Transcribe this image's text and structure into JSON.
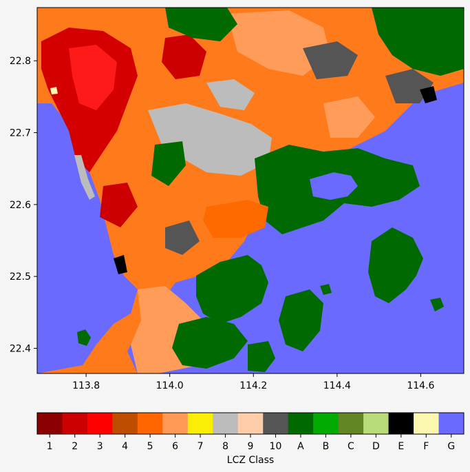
{
  "map": {
    "x_ticks": [
      "113.8",
      "114.0",
      "114.2",
      "114.4",
      "114.6"
    ],
    "y_ticks": [
      "22.8",
      "22.7",
      "22.6",
      "22.5",
      "22.4"
    ],
    "x_tick_values": [
      113.8,
      114.0,
      114.2,
      114.4,
      114.6
    ],
    "y_tick_values": [
      22.8,
      22.7,
      22.6,
      22.5,
      22.4
    ],
    "lon_range": [
      113.683,
      114.703
    ],
    "lat_range": [
      22.365,
      22.874
    ],
    "water_color": "#6a6aff",
    "dominant_land_colors": {
      "urban_west": "#ff6a00",
      "dense_urban_core": "#d40000",
      "vegetation": "#006a00",
      "light_industry": "#bcbcbc",
      "open_low_rise": "#ff9c5a"
    }
  },
  "colorbar": {
    "label": "LCZ Class",
    "classes": [
      {
        "label": "1",
        "color": "#8b0000"
      },
      {
        "label": "2",
        "color": "#cc0000"
      },
      {
        "label": "3",
        "color": "#ff0000"
      },
      {
        "label": "4",
        "color": "#bf4d00"
      },
      {
        "label": "5",
        "color": "#ff6600"
      },
      {
        "label": "6",
        "color": "#ff9955"
      },
      {
        "label": "7",
        "color": "#faee05"
      },
      {
        "label": "8",
        "color": "#bcbcbc"
      },
      {
        "label": "9",
        "color": "#ffccaa"
      },
      {
        "label": "10",
        "color": "#555555"
      },
      {
        "label": "A",
        "color": "#006a00"
      },
      {
        "label": "B",
        "color": "#00aa00"
      },
      {
        "label": "C",
        "color": "#648526"
      },
      {
        "label": "D",
        "color": "#b9db79"
      },
      {
        "label": "E",
        "color": "#000000"
      },
      {
        "label": "F",
        "color": "#fbf7ae"
      },
      {
        "label": "G",
        "color": "#6a6aff"
      }
    ]
  }
}
